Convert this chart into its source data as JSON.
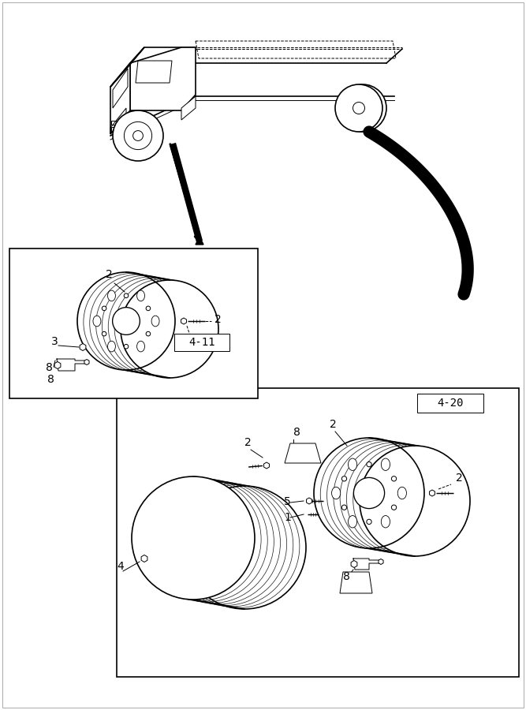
{
  "bg_color": "#ffffff",
  "line_color": "#000000",
  "box_label_411": "4-11",
  "box_label_420": "4-20",
  "figsize": [
    6.67,
    9.0
  ],
  "dpi": 100
}
